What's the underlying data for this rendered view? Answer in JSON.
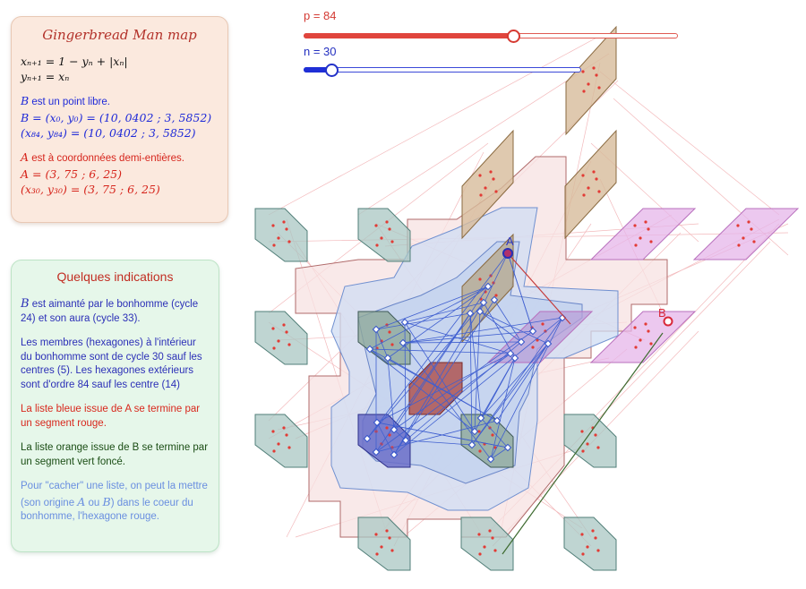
{
  "info": {
    "title": "Gingerbread Man map",
    "eq1": "xₙ₊₁ = 1 − yₙ + |xₙ|",
    "eq2": "yₙ₊₁ = xₙ",
    "b_free_letter": "B",
    "b_free_text": " est un point libre.",
    "b_coords": "B = (x₀, y₀) = (10, 0402 ; 3, 5852)",
    "b_iter": "(x₈₄, y₈₄) = (10, 0402 ; 3, 5852)",
    "a_half_letter": "A",
    "a_half_text": " est à coordonnées demi-entières.",
    "a_coords": "A = (3, 75 ; 6, 25)",
    "a_iter": "(x₃₀, y₃₀) = (3, 75 ; 6, 25)"
  },
  "hints": {
    "title": "Quelques indications",
    "h1_letter": "B",
    "h1_text": " est aimanté par le bonhomme (cycle 24) et son aura (cycle 33).",
    "h2": "Les membres (hexagones) à l'intérieur du bonhomme sont de cycle 30 sauf les centres (5). Les hexagones extérieurs sont d'ordre 84 sauf les centre (14)",
    "h3": "La liste bleue issue de A  se termine par un segment rouge.",
    "h4": "La liste orange issue de B se termine par un segment vert foncé.",
    "h5_a": "Pour \"cacher\" une liste, on peut la mettre (son origine ",
    "h5_A": "A",
    "h5_ou": " ou ",
    "h5_B": "B",
    "h5_b": ") dans le coeur du bonhomme, l'hexagone rouge."
  },
  "sliders": {
    "p_label": "p = 84",
    "p_value": 84,
    "p_min": 0,
    "p_max": 150,
    "n_label": "n = 30",
    "n_value": 30,
    "n_min": 0,
    "n_max": 300
  },
  "points": {
    "a_label": "A",
    "b_label": "B"
  },
  "colors": {
    "red": "#d6251c",
    "blue": "#1f2ad8",
    "hexagon_outer": "#5e8f88",
    "tan": "#b08a5a",
    "pink": "#d58ad8"
  }
}
